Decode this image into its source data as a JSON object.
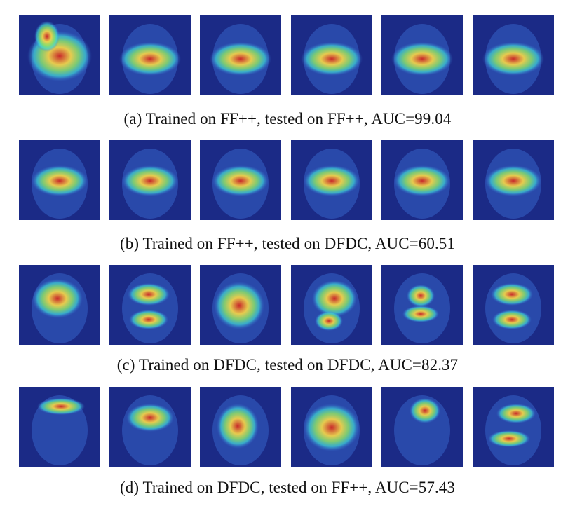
{
  "figure": {
    "rows": [
      {
        "caption": "(a) Trained on FF++, tested on FF++, AUC=99.04",
        "tiles": [
          {
            "face": "face-1",
            "heatmap": "broad-nose-region"
          },
          {
            "face": "face-2",
            "heatmap": "wide-band"
          },
          {
            "face": "face-3",
            "heatmap": "wide-band"
          },
          {
            "face": "face-4",
            "heatmap": "wide-band"
          },
          {
            "face": "face-5",
            "heatmap": "wide-band"
          },
          {
            "face": "face-6",
            "heatmap": "wide-band"
          }
        ]
      },
      {
        "caption": "(b) Trained on FF++, tested on DFDC, AUC=60.51",
        "tiles": [
          {
            "face": "face-7",
            "heatmap": "rectangle"
          },
          {
            "face": "face-8",
            "heatmap": "rectangle"
          },
          {
            "face": "face-9",
            "heatmap": "rectangle"
          },
          {
            "face": "face-10",
            "heatmap": "rectangle"
          },
          {
            "face": "face-11",
            "heatmap": "rectangle"
          },
          {
            "face": "face-12",
            "heatmap": "rectangle"
          }
        ]
      },
      {
        "caption": "(c) Trained on DFDC, tested on DFDC, AUC=82.37",
        "tiles": [
          {
            "face": "face-13",
            "heatmap": "upper-blob"
          },
          {
            "face": "face-14",
            "heatmap": "two-blobs"
          },
          {
            "face": "face-15",
            "heatmap": "diagonal"
          },
          {
            "face": "face-16",
            "heatmap": "scattered"
          },
          {
            "face": "face-17",
            "heatmap": "eyes-mouth"
          },
          {
            "face": "face-18",
            "heatmap": "two-blobs"
          }
        ]
      },
      {
        "caption": "(d) Trained on DFDC, tested on FF++, AUC=57.43",
        "tiles": [
          {
            "face": "face-19",
            "heatmap": "thin-band"
          },
          {
            "face": "face-20",
            "heatmap": "center-blob"
          },
          {
            "face": "face-21",
            "heatmap": "nose-blob"
          },
          {
            "face": "face-22",
            "heatmap": "square-frame"
          },
          {
            "face": "face-23",
            "heatmap": "side-spot"
          },
          {
            "face": "face-24",
            "heatmap": "two-spots"
          }
        ]
      }
    ]
  },
  "colors": {
    "background": "#1b2a86",
    "cool": "#3b6fd8",
    "cyan": "#3fd6d8",
    "green": "#8be06a",
    "yellow": "#f0d24a",
    "red": "#c8282a"
  }
}
